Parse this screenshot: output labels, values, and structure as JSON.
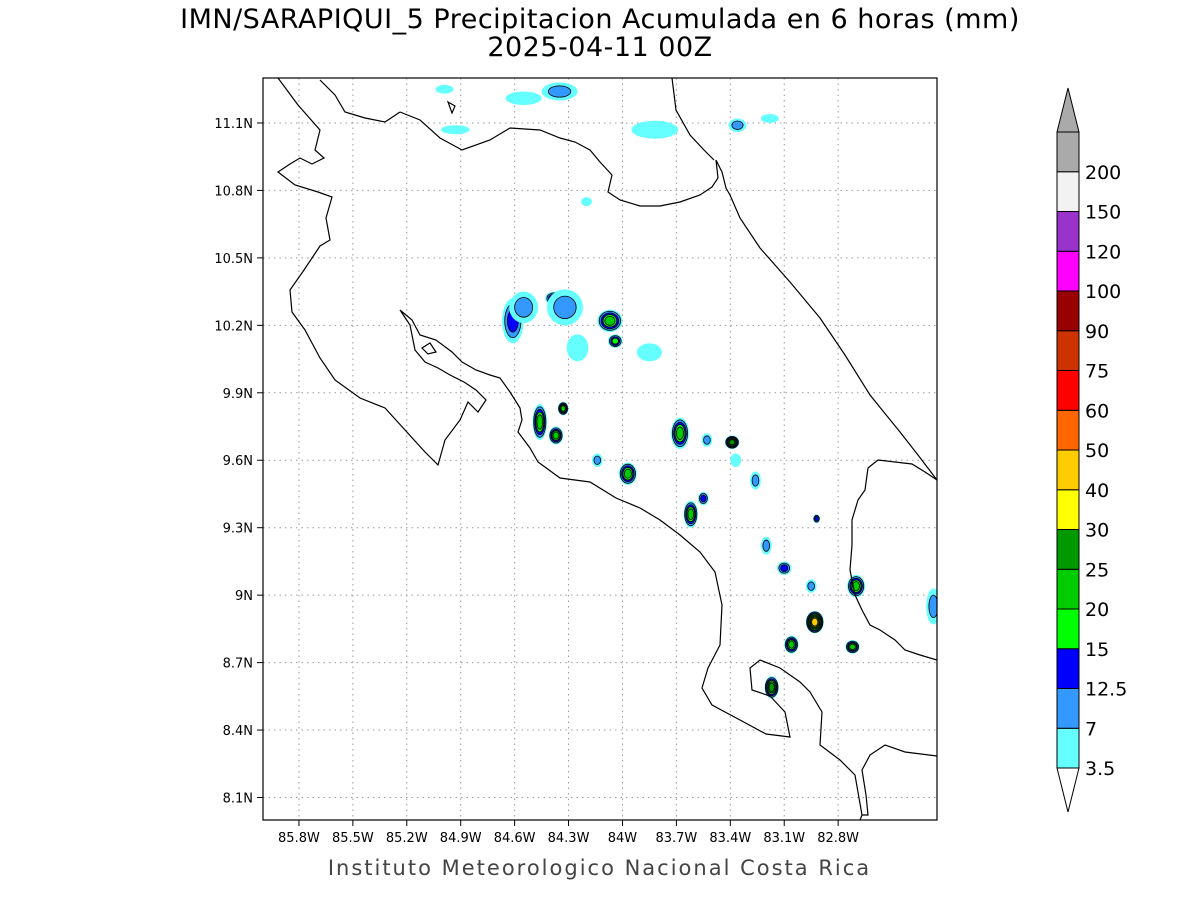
{
  "title": "IMN/SARAPIQUI_5 Precipitacion Acumulada en 6 horas (mm)",
  "subtitle": "2025-04-11 00Z",
  "credit": "Instituto Meteorologico Nacional Costa Rica",
  "map": {
    "lon_range": [
      -86.0,
      -82.25
    ],
    "lat_range": [
      8.0,
      11.3
    ],
    "lon_ticks": [
      {
        "value": -85.8,
        "label": "85.8W"
      },
      {
        "value": -85.5,
        "label": "85.5W"
      },
      {
        "value": -85.2,
        "label": "85.2W"
      },
      {
        "value": -84.9,
        "label": "84.9W"
      },
      {
        "value": -84.6,
        "label": "84.6W"
      },
      {
        "value": -84.3,
        "label": "84.3W"
      },
      {
        "value": -84.0,
        "label": "84W"
      },
      {
        "value": -83.7,
        "label": "83.7W"
      },
      {
        "value": -83.4,
        "label": "83.4W"
      },
      {
        "value": -83.1,
        "label": "83.1W"
      },
      {
        "value": -82.8,
        "label": "82.8W"
      }
    ],
    "lat_ticks": [
      {
        "value": 8.1,
        "label": "8.1N"
      },
      {
        "value": 8.4,
        "label": "8.4N"
      },
      {
        "value": 8.7,
        "label": "8.7N"
      },
      {
        "value": 9.0,
        "label": "9N"
      },
      {
        "value": 9.3,
        "label": "9.3N"
      },
      {
        "value": 9.6,
        "label": "9.6N"
      },
      {
        "value": 9.9,
        "label": "9.9N"
      },
      {
        "value": 10.2,
        "label": "10.2N"
      },
      {
        "value": 10.5,
        "label": "10.5N"
      },
      {
        "value": 10.8,
        "label": "10.8N"
      },
      {
        "value": 11.1,
        "label": "11.1N"
      }
    ],
    "grid": true,
    "cells": [
      {
        "lon": -84.61,
        "lat": 10.22,
        "rx": 0.06,
        "ry": 0.1,
        "level": 12.5
      },
      {
        "lon": -84.55,
        "lat": 10.28,
        "rx": 0.08,
        "ry": 0.07,
        "level": 7
      },
      {
        "lon": -84.38,
        "lat": 10.32,
        "rx": 0.05,
        "ry": 0.03,
        "level": 15
      },
      {
        "lon": -84.32,
        "lat": 10.28,
        "rx": 0.1,
        "ry": 0.08,
        "level": 7
      },
      {
        "lon": -84.25,
        "lat": 10.1,
        "rx": 0.06,
        "ry": 0.06,
        "level": 3.5
      },
      {
        "lon": -84.07,
        "lat": 10.22,
        "rx": 0.07,
        "ry": 0.05,
        "level": 20
      },
      {
        "lon": -84.04,
        "lat": 10.13,
        "rx": 0.04,
        "ry": 0.03,
        "level": 15
      },
      {
        "lon": -83.85,
        "lat": 10.08,
        "rx": 0.07,
        "ry": 0.04,
        "level": 3.5
      },
      {
        "lon": -84.46,
        "lat": 9.77,
        "rx": 0.04,
        "ry": 0.08,
        "level": 20
      },
      {
        "lon": -84.37,
        "lat": 9.71,
        "rx": 0.04,
        "ry": 0.04,
        "level": 20
      },
      {
        "lon": -84.33,
        "lat": 9.83,
        "rx": 0.03,
        "ry": 0.03,
        "level": 20
      },
      {
        "lon": -84.14,
        "lat": 9.6,
        "rx": 0.03,
        "ry": 0.03,
        "level": 7
      },
      {
        "lon": -83.97,
        "lat": 9.54,
        "rx": 0.05,
        "ry": 0.05,
        "level": 20
      },
      {
        "lon": -83.68,
        "lat": 9.72,
        "rx": 0.05,
        "ry": 0.07,
        "level": 20
      },
      {
        "lon": -83.53,
        "lat": 9.69,
        "rx": 0.03,
        "ry": 0.03,
        "level": 7
      },
      {
        "lon": -83.39,
        "lat": 9.68,
        "rx": 0.04,
        "ry": 0.03,
        "level": 25
      },
      {
        "lon": -83.37,
        "lat": 9.6,
        "rx": 0.03,
        "ry": 0.03,
        "level": 3.5
      },
      {
        "lon": -83.62,
        "lat": 9.36,
        "rx": 0.04,
        "ry": 0.06,
        "level": 20
      },
      {
        "lon": -83.55,
        "lat": 9.43,
        "rx": 0.03,
        "ry": 0.03,
        "level": 12.5
      },
      {
        "lon": -83.26,
        "lat": 9.51,
        "rx": 0.03,
        "ry": 0.04,
        "level": 7
      },
      {
        "lon": -83.2,
        "lat": 9.22,
        "rx": 0.03,
        "ry": 0.04,
        "level": 7
      },
      {
        "lon": -83.1,
        "lat": 9.12,
        "rx": 0.04,
        "ry": 0.03,
        "level": 12.5
      },
      {
        "lon": -82.93,
        "lat": 8.88,
        "rx": 0.05,
        "ry": 0.05,
        "level": 40
      },
      {
        "lon": -83.06,
        "lat": 8.78,
        "rx": 0.04,
        "ry": 0.04,
        "level": 20
      },
      {
        "lon": -82.7,
        "lat": 9.04,
        "rx": 0.05,
        "ry": 0.05,
        "level": 20
      },
      {
        "lon": -82.72,
        "lat": 8.77,
        "rx": 0.04,
        "ry": 0.03,
        "level": 20
      },
      {
        "lon": -83.17,
        "lat": 8.59,
        "rx": 0.04,
        "ry": 0.05,
        "level": 25
      },
      {
        "lon": -82.95,
        "lat": 9.04,
        "rx": 0.03,
        "ry": 0.03,
        "level": 7
      },
      {
        "lon": -82.92,
        "lat": 9.34,
        "rx": 0.02,
        "ry": 0.02,
        "level": 12.5
      },
      {
        "lon": -82.27,
        "lat": 8.95,
        "rx": 0.04,
        "ry": 0.08,
        "level": 7
      },
      {
        "lon": -83.82,
        "lat": 11.07,
        "rx": 0.13,
        "ry": 0.04,
        "level": 3.5
      },
      {
        "lon": -83.36,
        "lat": 11.09,
        "rx": 0.05,
        "ry": 0.03,
        "level": 7
      },
      {
        "lon": -83.18,
        "lat": 11.12,
        "rx": 0.05,
        "ry": 0.02,
        "level": 3.5
      },
      {
        "lon": -84.35,
        "lat": 11.24,
        "rx": 0.1,
        "ry": 0.04,
        "level": 7
      },
      {
        "lon": -84.55,
        "lat": 11.21,
        "rx": 0.1,
        "ry": 0.03,
        "level": 3.5
      },
      {
        "lon": -84.99,
        "lat": 11.25,
        "rx": 0.05,
        "ry": 0.02,
        "level": 3.5
      },
      {
        "lon": -84.93,
        "lat": 11.07,
        "rx": 0.08,
        "ry": 0.02,
        "level": 3.5
      },
      {
        "lon": -84.2,
        "lat": 10.75,
        "rx": 0.03,
        "ry": 0.02,
        "level": 3.5
      }
    ]
  },
  "colorbar": {
    "levels": [
      {
        "label": "3.5",
        "color": "#66ffff"
      },
      {
        "label": "7",
        "color": "#3399ff"
      },
      {
        "label": "12.5",
        "color": "#0000ff"
      },
      {
        "label": "15",
        "color": "#00ff00"
      },
      {
        "label": "20",
        "color": "#00cc00"
      },
      {
        "label": "25",
        "color": "#009900"
      },
      {
        "label": "30",
        "color": "#ffff00"
      },
      {
        "label": "40",
        "color": "#ffcc00"
      },
      {
        "label": "50",
        "color": "#ff6600"
      },
      {
        "label": "60",
        "color": "#ff0000"
      },
      {
        "label": "75",
        "color": "#cc3300"
      },
      {
        "label": "90",
        "color": "#990000"
      },
      {
        "label": "100",
        "color": "#ff00ff"
      },
      {
        "label": "120",
        "color": "#9933cc"
      },
      {
        "label": "150",
        "color": "#f2f2f2"
      },
      {
        "label": "200",
        "color": "#aaaaaa"
      }
    ]
  }
}
